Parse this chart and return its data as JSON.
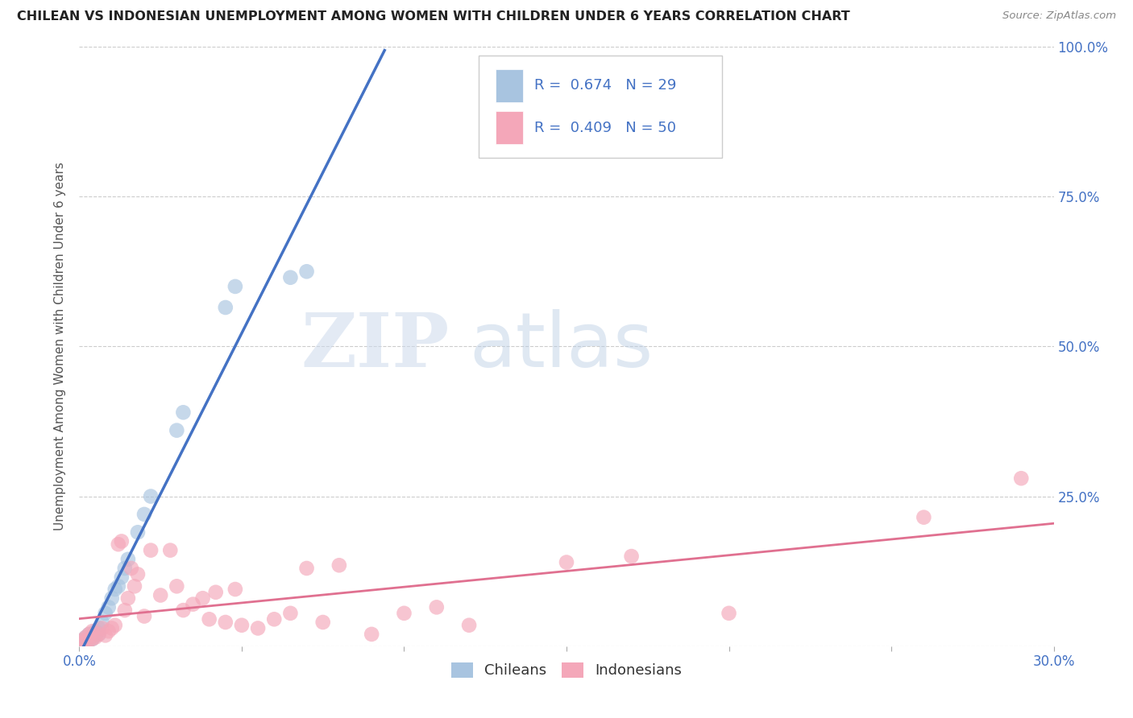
{
  "title": "CHILEAN VS INDONESIAN UNEMPLOYMENT AMONG WOMEN WITH CHILDREN UNDER 6 YEARS CORRELATION CHART",
  "source": "Source: ZipAtlas.com",
  "ylabel": "Unemployment Among Women with Children Under 6 years",
  "xlabel_chileans": "Chileans",
  "xlabel_indonesians": "Indonesians",
  "xmin": 0.0,
  "xmax": 0.3,
  "ymin": 0.0,
  "ymax": 1.0,
  "yticks": [
    0.0,
    0.25,
    0.5,
    0.75,
    1.0
  ],
  "xticks": [
    0.0,
    0.05,
    0.1,
    0.15,
    0.2,
    0.25,
    0.3
  ],
  "R_chileans": 0.674,
  "N_chileans": 29,
  "R_indonesians": 0.409,
  "N_indonesians": 50,
  "color_chileans": "#a8c4e0",
  "color_indonesians": "#f4a7b9",
  "color_line_chileans": "#4472c4",
  "color_line_indonesians": "#e07090",
  "color_text": "#4472c4",
  "chileans_x": [
    0.001,
    0.001,
    0.002,
    0.002,
    0.003,
    0.003,
    0.004,
    0.005,
    0.005,
    0.006,
    0.006,
    0.007,
    0.008,
    0.009,
    0.01,
    0.011,
    0.012,
    0.013,
    0.014,
    0.015,
    0.018,
    0.02,
    0.022,
    0.03,
    0.032,
    0.045,
    0.048,
    0.065,
    0.07
  ],
  "chileans_y": [
    0.005,
    0.01,
    0.008,
    0.015,
    0.01,
    0.02,
    0.012,
    0.018,
    0.025,
    0.02,
    0.03,
    0.04,
    0.055,
    0.065,
    0.08,
    0.095,
    0.1,
    0.115,
    0.13,
    0.145,
    0.19,
    0.22,
    0.25,
    0.36,
    0.39,
    0.565,
    0.6,
    0.615,
    0.625
  ],
  "indonesians_x": [
    0.001,
    0.001,
    0.002,
    0.002,
    0.003,
    0.003,
    0.004,
    0.004,
    0.005,
    0.006,
    0.007,
    0.008,
    0.009,
    0.01,
    0.011,
    0.012,
    0.013,
    0.014,
    0.015,
    0.016,
    0.017,
    0.018,
    0.02,
    0.022,
    0.025,
    0.028,
    0.03,
    0.032,
    0.035,
    0.038,
    0.04,
    0.042,
    0.045,
    0.048,
    0.05,
    0.055,
    0.06,
    0.065,
    0.07,
    0.075,
    0.08,
    0.09,
    0.1,
    0.11,
    0.12,
    0.15,
    0.17,
    0.2,
    0.26,
    0.29
  ],
  "indonesians_y": [
    0.005,
    0.01,
    0.008,
    0.015,
    0.01,
    0.02,
    0.012,
    0.025,
    0.015,
    0.02,
    0.03,
    0.018,
    0.025,
    0.03,
    0.035,
    0.17,
    0.175,
    0.06,
    0.08,
    0.13,
    0.1,
    0.12,
    0.05,
    0.16,
    0.085,
    0.16,
    0.1,
    0.06,
    0.07,
    0.08,
    0.045,
    0.09,
    0.04,
    0.095,
    0.035,
    0.03,
    0.045,
    0.055,
    0.13,
    0.04,
    0.135,
    0.02,
    0.055,
    0.065,
    0.035,
    0.14,
    0.15,
    0.055,
    0.215,
    0.28
  ]
}
